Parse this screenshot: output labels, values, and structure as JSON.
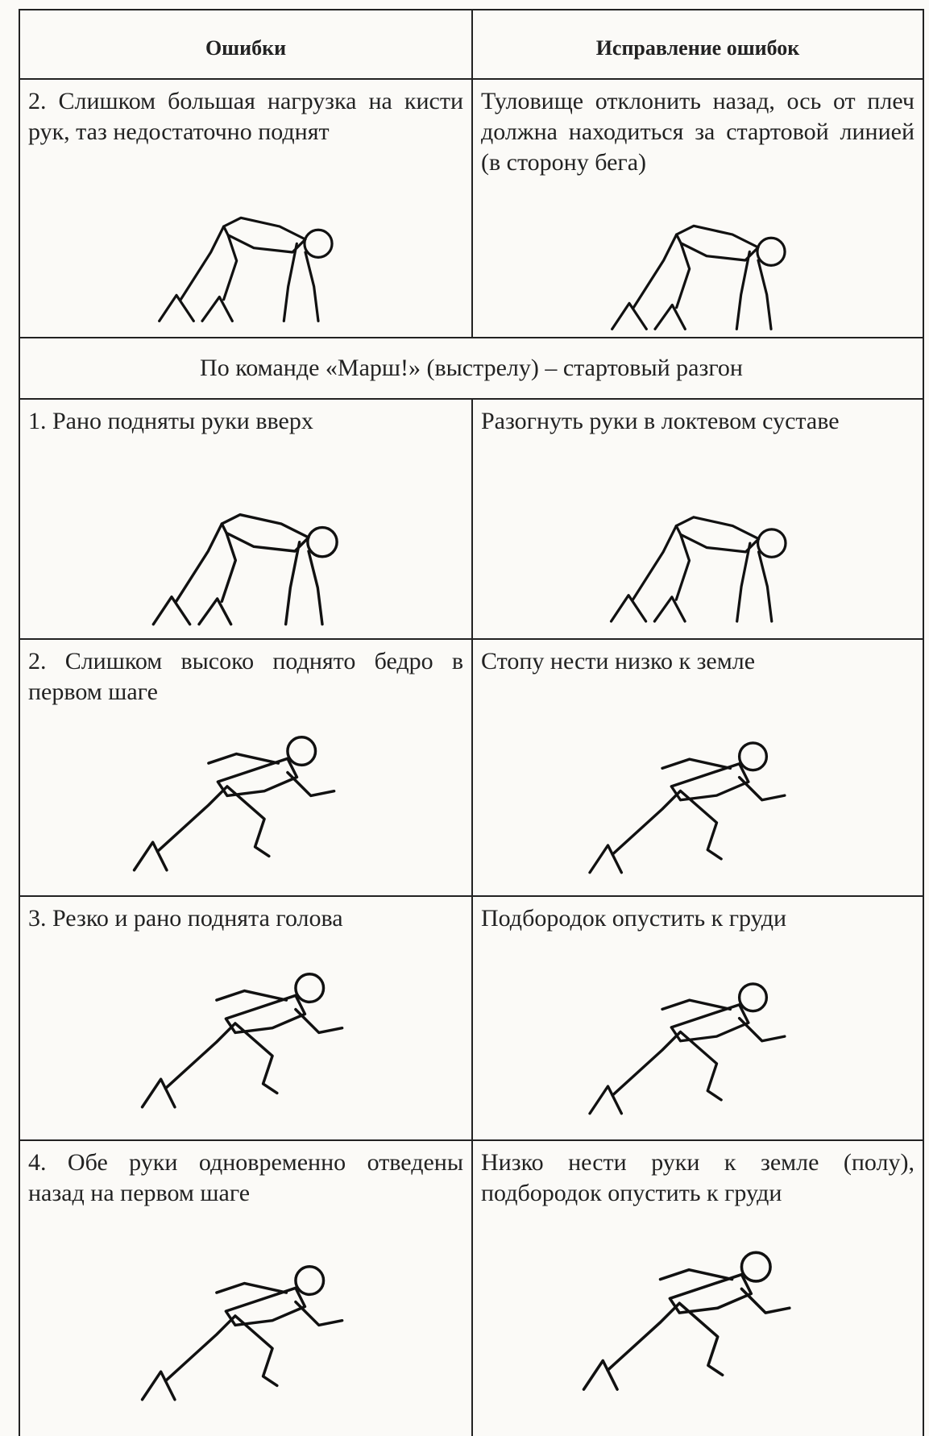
{
  "header": {
    "columns": [
      "Ошибки",
      "Исправление ошибок"
    ]
  },
  "rows_before": [
    {
      "error": "2. Слишком большая нагрузка на кисти рук, таз недостаточно поднят",
      "correction": "Туловище отклонить назад, ось от плеч должна находиться за стартовой линией (в сторону бега)"
    }
  ],
  "section_title": "По команде «Марш!» (выстрелу) – стартовый разгон",
  "rows_after": [
    {
      "error": "1. Рано подняты руки вверх",
      "correction": "Разогнуть руки в локтевом суставе"
    },
    {
      "error": "2. Слишком высоко поднято бедро в первом шаге",
      "correction": "Стопу нести низко к земле"
    },
    {
      "error": "3. Резко и рано поднята голова",
      "correction": "Подбородок опустить к груди"
    },
    {
      "error": "4. Обе руки одновременно отведены назад на первом шаге",
      "correction": "Низко нести руки к земле (полу), подбородок опустить к груди"
    }
  ]
}
